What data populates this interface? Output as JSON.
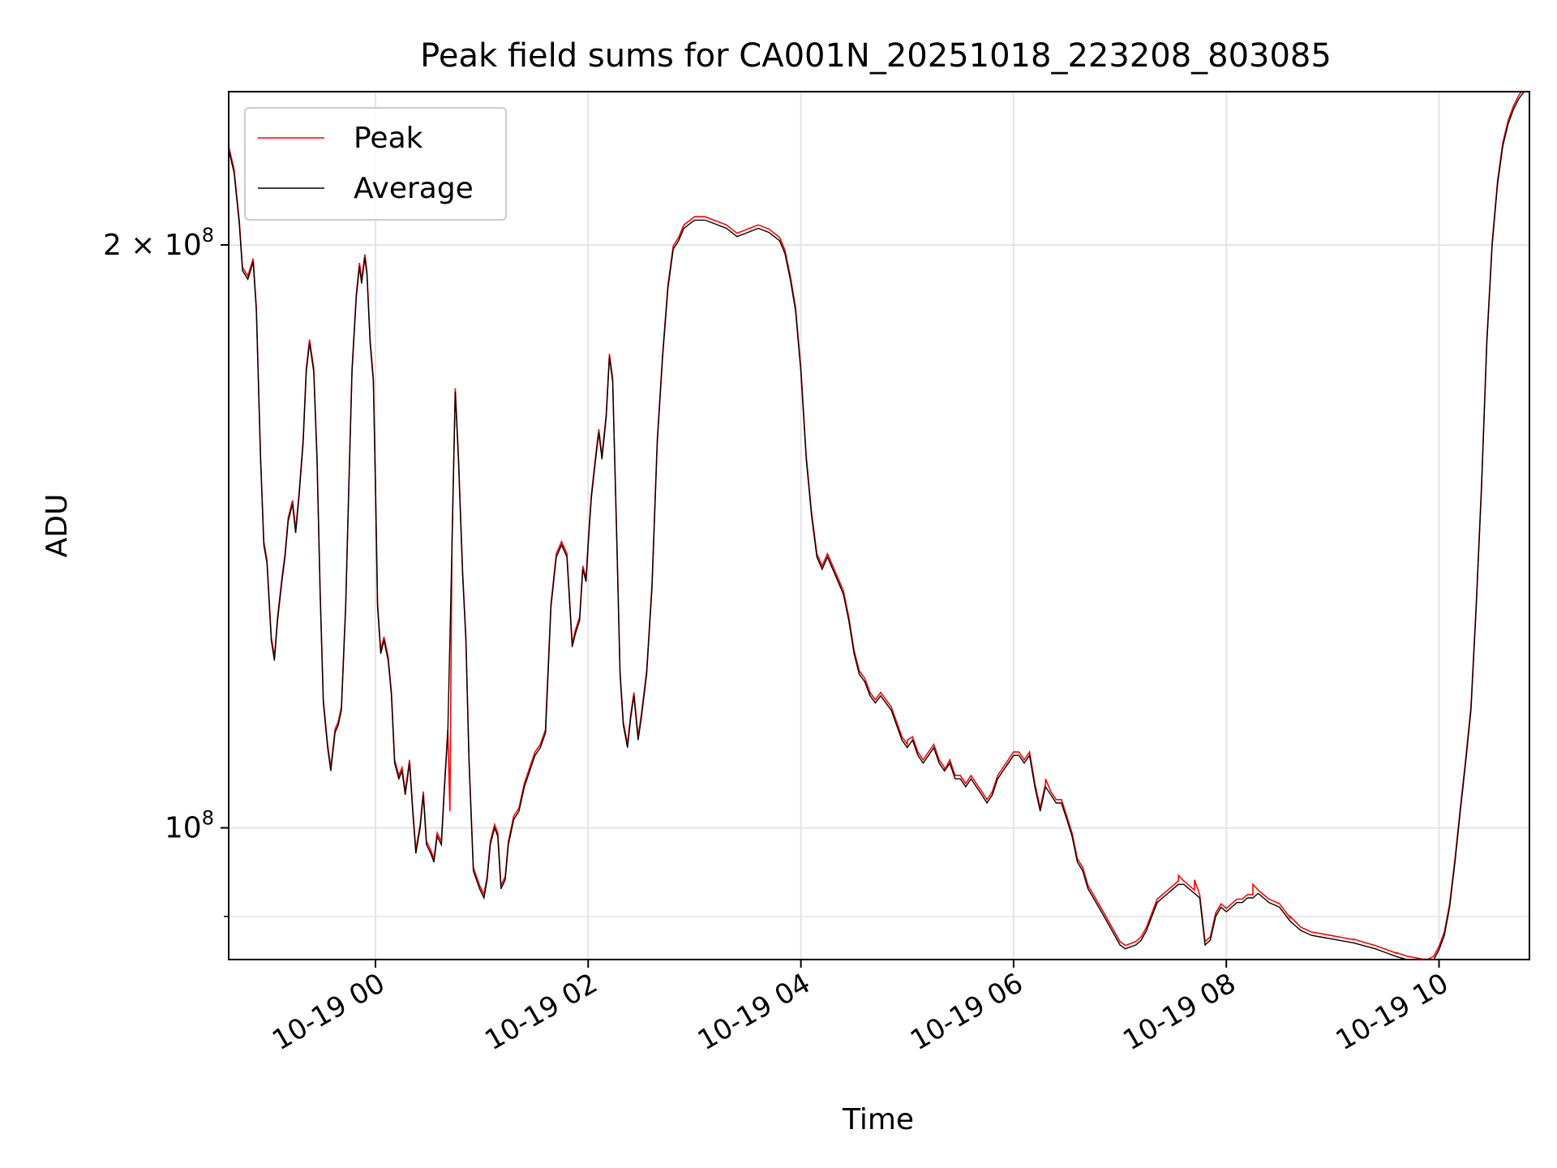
{
  "chart_data": {
    "type": "line",
    "title": "Peak field sums for CA001N_20251018_223208_803085",
    "xlabel": "Time",
    "ylabel": "ADU",
    "x_unit": "hours since 2025-10-19 00:00",
    "xlim": [
      -1.38,
      10.85
    ],
    "ylim": [
      0.855,
      2.4
    ],
    "y_scale": "log",
    "y_multiplier": 100000000,
    "grid": true,
    "legend_position": "top-left",
    "xticks": [
      {
        "value": 0,
        "label": "10-19 00"
      },
      {
        "value": 2,
        "label": "10-19 02"
      },
      {
        "value": 4,
        "label": "10-19 04"
      },
      {
        "value": 6,
        "label": "10-19 06"
      },
      {
        "value": 8,
        "label": "10-19 08"
      },
      {
        "value": 10,
        "label": "10-19 10"
      }
    ],
    "yticks": [
      {
        "value": 2.0,
        "base": "2 × 10",
        "exp": "8"
      },
      {
        "value": 1.0,
        "base": "10",
        "exp": "8"
      }
    ],
    "y_minor_ticks": [
      0.9
    ],
    "series": [
      {
        "name": "Peak",
        "color": "#ff0000"
      },
      {
        "name": "Average",
        "color": "#000000"
      }
    ],
    "points": [
      [
        -1.38,
        2.24
      ],
      [
        -1.33,
        2.18
      ],
      [
        -1.28,
        2.05
      ],
      [
        -1.25,
        1.94
      ],
      [
        -1.2,
        1.92
      ],
      [
        -1.15,
        1.96
      ],
      [
        -1.12,
        1.85
      ],
      [
        -1.08,
        1.55
      ],
      [
        -1.05,
        1.4
      ],
      [
        -1.02,
        1.37
      ],
      [
        -0.98,
        1.25
      ],
      [
        -0.95,
        1.22
      ],
      [
        -0.92,
        1.28
      ],
      [
        -0.88,
        1.34
      ],
      [
        -0.85,
        1.38
      ],
      [
        -0.82,
        1.44
      ],
      [
        -0.78,
        1.47
      ],
      [
        -0.75,
        1.42
      ],
      [
        -0.72,
        1.48
      ],
      [
        -0.68,
        1.58
      ],
      [
        -0.65,
        1.72
      ],
      [
        -0.62,
        1.78
      ],
      [
        -0.58,
        1.72
      ],
      [
        -0.55,
        1.55
      ],
      [
        -0.52,
        1.32
      ],
      [
        -0.49,
        1.16
      ],
      [
        -0.45,
        1.1
      ],
      [
        -0.42,
        1.07
      ],
      [
        -0.38,
        1.12
      ],
      [
        -0.35,
        1.13
      ],
      [
        -0.32,
        1.15
      ],
      [
        -0.28,
        1.3
      ],
      [
        -0.25,
        1.5
      ],
      [
        -0.22,
        1.72
      ],
      [
        -0.18,
        1.88
      ],
      [
        -0.15,
        1.95
      ],
      [
        -0.13,
        1.91
      ],
      [
        -0.1,
        1.97
      ],
      [
        -0.08,
        1.93
      ],
      [
        -0.05,
        1.78
      ],
      [
        -0.02,
        1.7
      ],
      [
        0.0,
        1.5
      ],
      [
        0.02,
        1.3
      ],
      [
        0.05,
        1.23
      ],
      [
        0.08,
        1.25
      ],
      [
        0.12,
        1.22
      ],
      [
        0.15,
        1.17
      ],
      [
        0.18,
        1.08
      ],
      [
        0.22,
        1.06
      ],
      [
        0.25,
        1.07
      ],
      [
        0.28,
        1.04
      ],
      [
        0.32,
        1.08
      ],
      [
        0.35,
        1.02
      ],
      [
        0.38,
        0.97
      ],
      [
        0.42,
        1.0
      ],
      [
        0.45,
        1.04
      ],
      [
        0.48,
        0.98
      ],
      [
        0.52,
        0.97
      ],
      [
        0.55,
        0.96
      ],
      [
        0.58,
        0.99
      ],
      [
        0.62,
        0.98
      ],
      [
        0.65,
        1.05
      ],
      [
        0.68,
        1.12
      ],
      [
        0.72,
        1.4
      ],
      [
        0.75,
        1.68
      ],
      [
        0.78,
        1.55
      ],
      [
        0.82,
        1.35
      ],
      [
        0.85,
        1.25
      ],
      [
        0.88,
        1.08
      ],
      [
        0.92,
        0.95
      ],
      [
        0.95,
        0.94
      ],
      [
        0.98,
        0.93
      ],
      [
        1.02,
        0.92
      ],
      [
        1.05,
        0.94
      ],
      [
        1.08,
        0.98
      ],
      [
        1.12,
        1.0
      ],
      [
        1.15,
        0.99
      ],
      [
        1.18,
        0.93
      ],
      [
        1.22,
        0.94
      ],
      [
        1.25,
        0.98
      ],
      [
        1.3,
        1.01
      ],
      [
        1.35,
        1.02
      ],
      [
        1.4,
        1.05
      ],
      [
        1.45,
        1.07
      ],
      [
        1.5,
        1.09
      ],
      [
        1.55,
        1.1
      ],
      [
        1.6,
        1.12
      ],
      [
        1.65,
        1.3
      ],
      [
        1.7,
        1.38
      ],
      [
        1.75,
        1.4
      ],
      [
        1.8,
        1.38
      ],
      [
        1.85,
        1.24
      ],
      [
        1.88,
        1.26
      ],
      [
        1.92,
        1.28
      ],
      [
        1.95,
        1.36
      ],
      [
        1.98,
        1.34
      ],
      [
        2.0,
        1.4
      ],
      [
        2.03,
        1.48
      ],
      [
        2.07,
        1.55
      ],
      [
        2.1,
        1.6
      ],
      [
        2.13,
        1.55
      ],
      [
        2.17,
        1.63
      ],
      [
        2.2,
        1.75
      ],
      [
        2.23,
        1.7
      ],
      [
        2.27,
        1.4
      ],
      [
        2.3,
        1.2
      ],
      [
        2.33,
        1.13
      ],
      [
        2.37,
        1.1
      ],
      [
        2.4,
        1.14
      ],
      [
        2.43,
        1.17
      ],
      [
        2.47,
        1.11
      ],
      [
        2.5,
        1.14
      ],
      [
        2.55,
        1.2
      ],
      [
        2.6,
        1.33
      ],
      [
        2.65,
        1.58
      ],
      [
        2.7,
        1.75
      ],
      [
        2.75,
        1.9
      ],
      [
        2.8,
        1.99
      ],
      [
        2.85,
        2.01
      ],
      [
        2.9,
        2.04
      ],
      [
        2.95,
        2.05
      ],
      [
        3.0,
        2.06
      ],
      [
        3.1,
        2.06
      ],
      [
        3.2,
        2.05
      ],
      [
        3.3,
        2.04
      ],
      [
        3.4,
        2.02
      ],
      [
        3.5,
        2.03
      ],
      [
        3.6,
        2.04
      ],
      [
        3.7,
        2.03
      ],
      [
        3.8,
        2.01
      ],
      [
        3.85,
        1.98
      ],
      [
        3.9,
        1.92
      ],
      [
        3.95,
        1.85
      ],
      [
        4.0,
        1.72
      ],
      [
        4.05,
        1.55
      ],
      [
        4.1,
        1.45
      ],
      [
        4.15,
        1.38
      ],
      [
        4.2,
        1.36
      ],
      [
        4.25,
        1.38
      ],
      [
        4.3,
        1.36
      ],
      [
        4.35,
        1.34
      ],
      [
        4.4,
        1.32
      ],
      [
        4.45,
        1.28
      ],
      [
        4.5,
        1.23
      ],
      [
        4.55,
        1.2
      ],
      [
        4.6,
        1.19
      ],
      [
        4.65,
        1.17
      ],
      [
        4.7,
        1.16
      ],
      [
        4.75,
        1.17
      ],
      [
        4.8,
        1.16
      ],
      [
        4.85,
        1.15
      ],
      [
        4.9,
        1.13
      ],
      [
        4.95,
        1.11
      ],
      [
        5.0,
        1.1
      ],
      [
        5.05,
        1.11
      ],
      [
        5.1,
        1.09
      ],
      [
        5.15,
        1.08
      ],
      [
        5.2,
        1.09
      ],
      [
        5.25,
        1.1
      ],
      [
        5.3,
        1.08
      ],
      [
        5.35,
        1.07
      ],
      [
        5.4,
        1.08
      ],
      [
        5.45,
        1.06
      ],
      [
        5.5,
        1.06
      ],
      [
        5.55,
        1.05
      ],
      [
        5.6,
        1.06
      ],
      [
        5.65,
        1.05
      ],
      [
        5.7,
        1.04
      ],
      [
        5.75,
        1.03
      ],
      [
        5.8,
        1.04
      ],
      [
        5.85,
        1.06
      ],
      [
        5.9,
        1.07
      ],
      [
        5.95,
        1.08
      ],
      [
        6.0,
        1.09
      ],
      [
        6.05,
        1.09
      ],
      [
        6.1,
        1.08
      ],
      [
        6.15,
        1.09
      ],
      [
        6.2,
        1.05
      ],
      [
        6.25,
        1.02
      ],
      [
        6.3,
        1.05
      ],
      [
        6.35,
        1.04
      ],
      [
        6.4,
        1.03
      ],
      [
        6.45,
        1.03
      ],
      [
        6.5,
        1.01
      ],
      [
        6.55,
        0.99
      ],
      [
        6.6,
        0.96
      ],
      [
        6.65,
        0.95
      ],
      [
        6.7,
        0.93
      ],
      [
        6.75,
        0.92
      ],
      [
        6.8,
        0.91
      ],
      [
        6.85,
        0.9
      ],
      [
        6.9,
        0.89
      ],
      [
        6.95,
        0.88
      ],
      [
        7.0,
        0.87
      ],
      [
        7.05,
        0.866
      ],
      [
        7.1,
        0.868
      ],
      [
        7.15,
        0.87
      ],
      [
        7.2,
        0.875
      ],
      [
        7.25,
        0.885
      ],
      [
        7.3,
        0.9
      ],
      [
        7.35,
        0.915
      ],
      [
        7.4,
        0.92
      ],
      [
        7.45,
        0.925
      ],
      [
        7.5,
        0.93
      ],
      [
        7.55,
        0.935
      ],
      [
        7.6,
        0.935
      ],
      [
        7.65,
        0.93
      ],
      [
        7.7,
        0.925
      ],
      [
        7.75,
        0.92
      ],
      [
        7.8,
        0.87
      ],
      [
        7.85,
        0.875
      ],
      [
        7.9,
        0.9
      ],
      [
        7.95,
        0.91
      ],
      [
        8.0,
        0.905
      ],
      [
        8.05,
        0.91
      ],
      [
        8.1,
        0.915
      ],
      [
        8.15,
        0.915
      ],
      [
        8.2,
        0.92
      ],
      [
        8.25,
        0.92
      ],
      [
        8.3,
        0.925
      ],
      [
        8.35,
        0.92
      ],
      [
        8.4,
        0.915
      ],
      [
        8.5,
        0.91
      ],
      [
        8.6,
        0.895
      ],
      [
        8.7,
        0.885
      ],
      [
        8.8,
        0.88
      ],
      [
        8.9,
        0.878
      ],
      [
        9.0,
        0.876
      ],
      [
        9.1,
        0.874
      ],
      [
        9.2,
        0.872
      ],
      [
        9.3,
        0.869
      ],
      [
        9.4,
        0.866
      ],
      [
        9.5,
        0.862
      ],
      [
        9.6,
        0.858
      ],
      [
        9.7,
        0.855
      ],
      [
        9.8,
        0.853
      ],
      [
        9.85,
        0.852
      ],
      [
        9.9,
        0.852
      ],
      [
        9.95,
        0.855
      ],
      [
        10.0,
        0.865
      ],
      [
        10.05,
        0.88
      ],
      [
        10.1,
        0.91
      ],
      [
        10.15,
        0.96
      ],
      [
        10.2,
        1.02
      ],
      [
        10.25,
        1.08
      ],
      [
        10.3,
        1.15
      ],
      [
        10.35,
        1.3
      ],
      [
        10.4,
        1.5
      ],
      [
        10.45,
        1.78
      ],
      [
        10.5,
        2.0
      ],
      [
        10.55,
        2.15
      ],
      [
        10.6,
        2.25
      ],
      [
        10.65,
        2.31
      ],
      [
        10.7,
        2.35
      ],
      [
        10.75,
        2.38
      ],
      [
        10.8,
        2.4
      ],
      [
        10.85,
        2.41
      ]
    ],
    "peak_spikes": [
      [
        0.7,
        1.02
      ],
      [
        1.6,
        1.13
      ],
      [
        5.0,
        1.11
      ],
      [
        5.35,
        1.07
      ],
      [
        6.3,
        1.06
      ],
      [
        7.55,
        0.945
      ],
      [
        7.7,
        0.94
      ],
      [
        8.25,
        0.935
      ],
      [
        8.6,
        0.9
      ],
      [
        9.2,
        0.876
      ],
      [
        9.6,
        0.862
      ]
    ]
  }
}
